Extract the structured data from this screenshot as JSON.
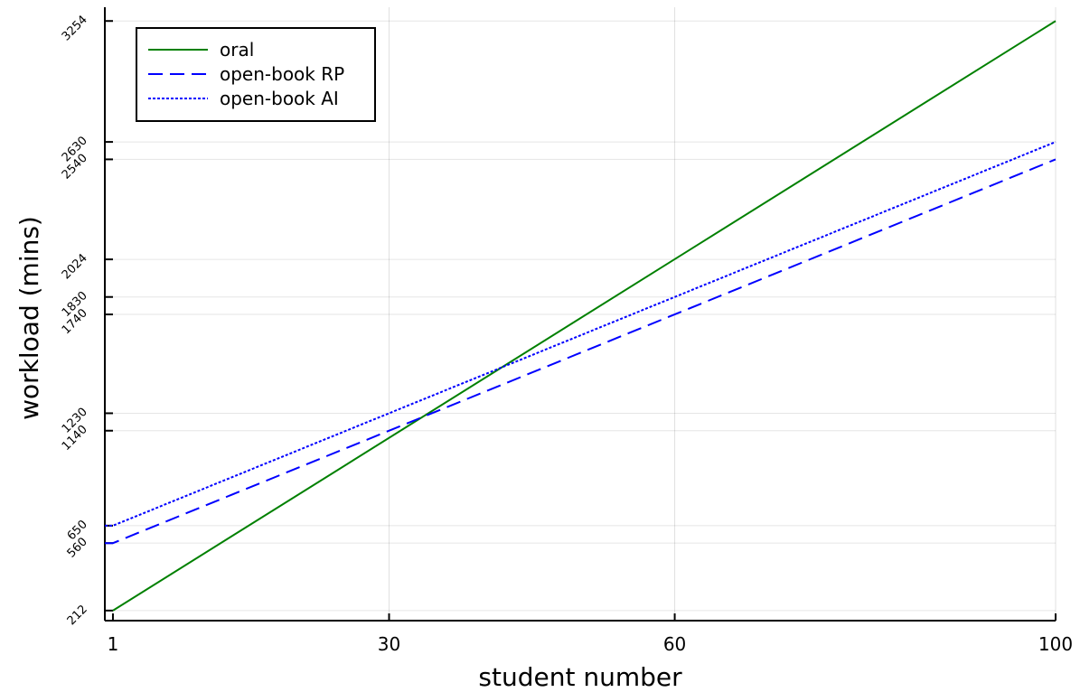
{
  "chart_data": {
    "type": "line",
    "title": "",
    "xlabel": "student number",
    "ylabel": "workload (mins)",
    "xlim": [
      0.15,
      100
    ],
    "ylim": [
      160,
      3325
    ],
    "x_ticks": [
      1,
      30,
      60,
      100
    ],
    "x_tick_labels": [
      "1",
      "30",
      "60",
      "100"
    ],
    "y_ticks": [
      212,
      560,
      650,
      1140,
      1230,
      1740,
      1830,
      2024,
      2540,
      2630,
      3254
    ],
    "y_tick_labels": [
      "212",
      "560",
      "650",
      "1140",
      "1230",
      "1740",
      "1830",
      "2024",
      "2540",
      "2630",
      "3254"
    ],
    "grid": true,
    "legend_position": "top-left",
    "series": [
      {
        "name": "oral",
        "color": "#008000",
        "dash": "solid",
        "x": [
          1,
          100
        ],
        "values": [
          212,
          3254
        ]
      },
      {
        "name": "open-book RP",
        "color": "#0000ff",
        "dash": "dashed",
        "x": [
          0.15,
          1,
          100
        ],
        "values": [
          560,
          560,
          2540
        ]
      },
      {
        "name": "open-book AI",
        "color": "#0000ff",
        "dash": "dotted",
        "x": [
          0.15,
          1,
          100
        ],
        "values": [
          650,
          650,
          2630
        ]
      }
    ]
  }
}
